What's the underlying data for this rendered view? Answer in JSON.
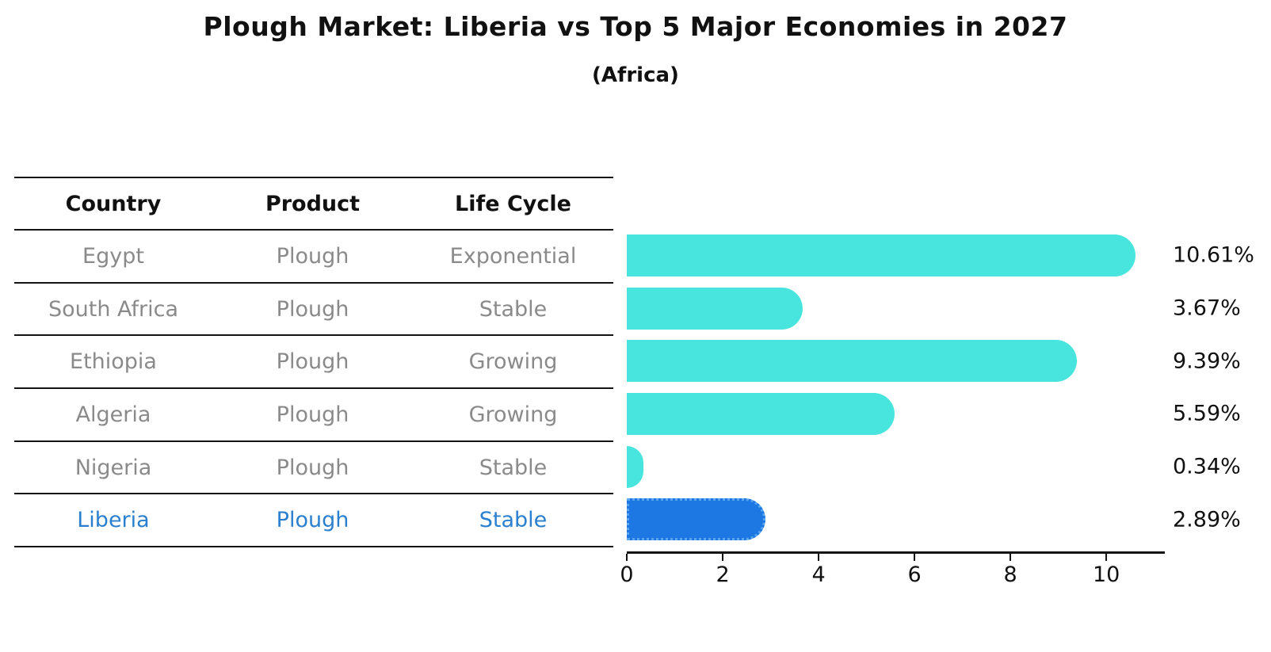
{
  "title": "Plough Market: Liberia vs Top 5 Major Economies in 2027",
  "subtitle": "(Africa)",
  "table": {
    "headers": [
      "Country",
      "Product",
      "Life Cycle"
    ],
    "rows": [
      {
        "country": "Egypt",
        "product": "Plough",
        "life_cycle": "Exponential",
        "highlight": false
      },
      {
        "country": "South Africa",
        "product": "Plough",
        "life_cycle": "Stable",
        "highlight": false
      },
      {
        "country": "Ethiopia",
        "product": "Plough",
        "life_cycle": "Growing",
        "highlight": false
      },
      {
        "country": "Algeria",
        "product": "Plough",
        "life_cycle": "Growing",
        "highlight": false
      },
      {
        "country": "Nigeria",
        "product": "Plough",
        "life_cycle": "Stable",
        "highlight": false
      },
      {
        "country": "Liberia",
        "product": "Plough",
        "life_cycle": "Stable",
        "highlight": true
      }
    ]
  },
  "chart_data": {
    "type": "bar",
    "orientation": "horizontal",
    "title": "Plough Market: Liberia vs Top 5 Major Economies in 2027",
    "subtitle": "(Africa)",
    "categories": [
      "Egypt",
      "South Africa",
      "Ethiopia",
      "Algeria",
      "Nigeria",
      "Liberia"
    ],
    "values": [
      10.61,
      3.67,
      9.39,
      5.59,
      0.34,
      2.89
    ],
    "value_labels": [
      "10.61%",
      "3.67%",
      "9.39%",
      "5.59%",
      "0.34%",
      "2.89%"
    ],
    "xlim": [
      0,
      11.22
    ],
    "x_ticks": [
      0,
      2,
      4,
      6,
      8,
      10
    ],
    "grid": false,
    "legend": "none",
    "highlight_index": 5
  },
  "colors": {
    "bar": "#48e5de",
    "highlight_bar": "#1d78e3",
    "highlight_edge": "#5aa7f0",
    "highlight_text": "#2a80cf",
    "table_text": "#8a8a8a",
    "axis": "#141414"
  }
}
